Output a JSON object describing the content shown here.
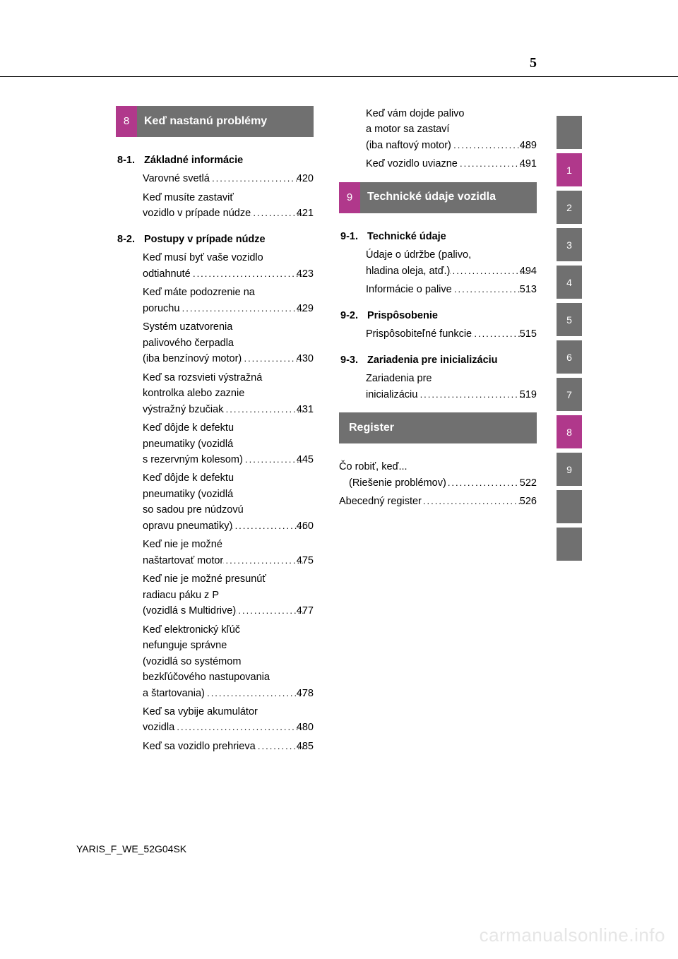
{
  "page_number": "5",
  "footer": "YARIS_F_WE_52G04SK",
  "watermark": "carmanualsonline.info",
  "tabs": [
    {
      "label": "",
      "hl": false
    },
    {
      "label": "1",
      "hl": true
    },
    {
      "label": "2",
      "hl": false
    },
    {
      "label": "3",
      "hl": false
    },
    {
      "label": "4",
      "hl": false
    },
    {
      "label": "5",
      "hl": false
    },
    {
      "label": "6",
      "hl": false
    },
    {
      "label": "7",
      "hl": false
    },
    {
      "label": "8",
      "hl": true
    },
    {
      "label": "9",
      "hl": false
    },
    {
      "label": "",
      "hl": false
    },
    {
      "label": "",
      "hl": false
    }
  ],
  "left": {
    "section_num": "8",
    "section_title": "Keď nastanú problémy",
    "groups": [
      {
        "num": "8-1.",
        "title": "Základné informácie",
        "items": [
          {
            "lines": [
              "Varovné svetlá"
            ],
            "page": "420"
          },
          {
            "lines": [
              "Keď musíte zastaviť",
              "vozidlo v prípade núdze"
            ],
            "page": "421"
          }
        ]
      },
      {
        "num": "8-2.",
        "title": "Postupy v prípade núdze",
        "items": [
          {
            "lines": [
              "Keď musí byť vaše vozidlo",
              "odtiahnuté"
            ],
            "page": "423"
          },
          {
            "lines": [
              "Keď máte podozrenie na",
              "poruchu"
            ],
            "page": "429"
          },
          {
            "lines": [
              "Systém uzatvorenia",
              "palivového čerpadla",
              "(iba benzínový motor)"
            ],
            "page": "430"
          },
          {
            "lines": [
              "Keď sa rozsvieti výstražná",
              "kontrolka alebo zaznie",
              "výstražný bzučiak"
            ],
            "page": "431"
          },
          {
            "lines": [
              "Keď dôjde k defektu",
              "pneumatiky (vozidlá",
              "s rezervným kolesom)"
            ],
            "page": "445"
          },
          {
            "lines": [
              "Keď dôjde k defektu",
              "pneumatiky (vozidlá",
              "so sadou pre núdzovú",
              "opravu pneumatiky)"
            ],
            "page": "460"
          },
          {
            "lines": [
              "Keď nie je možné",
              "naštartovať motor"
            ],
            "page": "475"
          },
          {
            "lines": [
              "Keď nie je možné presunúť",
              "radiacu páku z P",
              "(vozidlá s Multidrive)"
            ],
            "page": "477"
          },
          {
            "lines": [
              "Keď elektronický kľúč",
              "nefunguje správne",
              "(vozidlá so systémom",
              "bezkľúčového nastupovania",
              "a štartovania)"
            ],
            "page": "478"
          },
          {
            "lines": [
              "Keď sa vybije akumulátor",
              "vozidla"
            ],
            "page": "480"
          },
          {
            "lines": [
              "Keď sa vozidlo prehrieva"
            ],
            "page": "485"
          }
        ]
      }
    ]
  },
  "right_top_items": [
    {
      "lines": [
        "Keď vám dojde palivo",
        "a motor sa zastaví",
        "(iba naftový motor)"
      ],
      "page": "489"
    },
    {
      "lines": [
        "Keď vozidlo uviazne"
      ],
      "page": "491"
    }
  ],
  "right": {
    "section_num": "9",
    "section_title": "Technické údaje vozidla",
    "groups": [
      {
        "num": "9-1.",
        "title": "Technické údaje",
        "items": [
          {
            "lines": [
              "Údaje o údržbe (palivo,",
              "hladina oleja, atď.)"
            ],
            "page": "494"
          },
          {
            "lines": [
              "Informácie o palive"
            ],
            "page": "513"
          }
        ]
      },
      {
        "num": "9-2.",
        "title": "Prispôsobenie",
        "items": [
          {
            "lines": [
              "Prispôsobiteľné funkcie"
            ],
            "page": "515"
          }
        ]
      },
      {
        "num": "9-3.",
        "title": "Zariadenia pre inicializáciu",
        "items": [
          {
            "lines": [
              "Zariadenia pre",
              "inicializáciu"
            ],
            "page": "519"
          }
        ]
      }
    ]
  },
  "register": {
    "title": "Register",
    "items": [
      {
        "lines": [
          "Čo robiť, keď...",
          "(Riešenie problémov)"
        ],
        "page": "522"
      },
      {
        "lines": [
          "Abecedný register"
        ],
        "page": "526"
      }
    ]
  }
}
